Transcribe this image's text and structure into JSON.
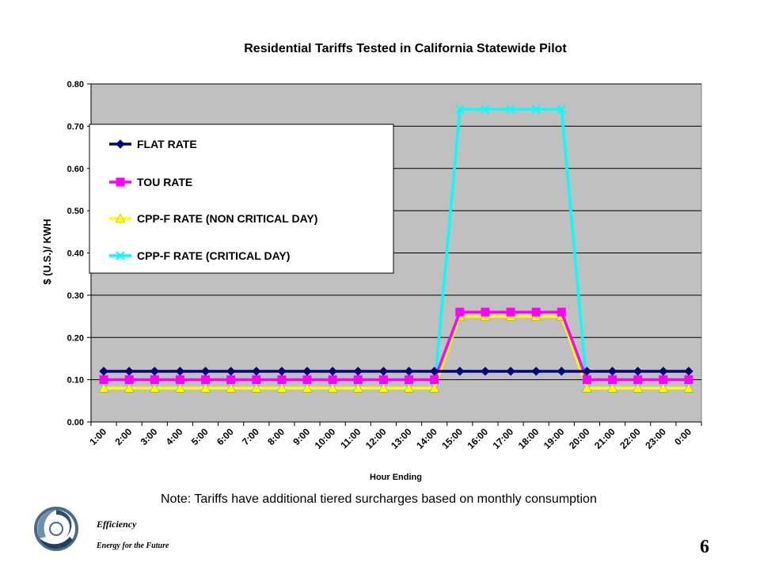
{
  "chart_data": {
    "type": "line",
    "title": "Residential Tariffs Tested in California Statewide Pilot",
    "xlabel": "Hour Ending",
    "ylabel": "$ (U.S.)/ KWH",
    "ylim": [
      0,
      0.8
    ],
    "yticks": [
      "0.00",
      "0.10",
      "0.20",
      "0.30",
      "0.40",
      "0.50",
      "0.60",
      "0.70",
      "0.80"
    ],
    "categories": [
      "1:00",
      "2:00",
      "3:00",
      "4:00",
      "5:00",
      "6:00",
      "7:00",
      "8:00",
      "9:00",
      "10:00",
      "11:00",
      "12:00",
      "13:00",
      "14:00",
      "15:00",
      "16:00",
      "17:00",
      "18:00",
      "19:00",
      "20:00",
      "21:00",
      "22:00",
      "23:00",
      "0:00"
    ],
    "grid": "horizontal",
    "legend_position": "top-left",
    "series": [
      {
        "name": "FLAT RATE",
        "color": "#000080",
        "marker": "diamond",
        "values": [
          0.12,
          0.12,
          0.12,
          0.12,
          0.12,
          0.12,
          0.12,
          0.12,
          0.12,
          0.12,
          0.12,
          0.12,
          0.12,
          0.12,
          0.12,
          0.12,
          0.12,
          0.12,
          0.12,
          0.12,
          0.12,
          0.12,
          0.12,
          0.12
        ]
      },
      {
        "name": "TOU RATE",
        "color": "#FF00FF",
        "marker": "square",
        "values": [
          0.1,
          0.1,
          0.1,
          0.1,
          0.1,
          0.1,
          0.1,
          0.1,
          0.1,
          0.1,
          0.1,
          0.1,
          0.1,
          0.1,
          0.26,
          0.26,
          0.26,
          0.26,
          0.26,
          0.1,
          0.1,
          0.1,
          0.1,
          0.1
        ]
      },
      {
        "name": "CPP-F RATE (NON CRITICAL DAY)",
        "color": "#FFFF00",
        "marker": "triangle",
        "values": [
          0.08,
          0.08,
          0.08,
          0.08,
          0.08,
          0.08,
          0.08,
          0.08,
          0.08,
          0.08,
          0.08,
          0.08,
          0.08,
          0.08,
          0.25,
          0.25,
          0.25,
          0.25,
          0.25,
          0.08,
          0.08,
          0.08,
          0.08,
          0.08
        ]
      },
      {
        "name": "CPP-F RATE (CRITICAL DAY)",
        "color": "#00FFFF",
        "marker": "x",
        "values": [
          0.08,
          0.08,
          0.08,
          0.08,
          0.08,
          0.08,
          0.08,
          0.08,
          0.08,
          0.08,
          0.08,
          0.08,
          0.08,
          0.08,
          0.74,
          0.74,
          0.74,
          0.74,
          0.74,
          0.08,
          0.08,
          0.08,
          0.08,
          0.08
        ]
      }
    ],
    "plot_background": "#C0C0C0"
  },
  "footer": {
    "note": "Note: Tariffs have additional tiered surcharges based on monthly consumption",
    "brand_name": "Efficiency",
    "brand_tagline": "Energy for the Future",
    "page_number": "6",
    "logo_icon": "swirl-logo-icon"
  }
}
